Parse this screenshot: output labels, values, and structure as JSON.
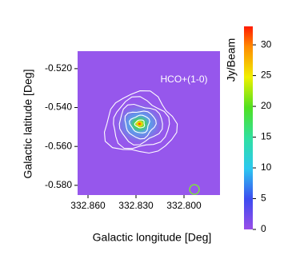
{
  "chart_data": {
    "type": "image",
    "annotation": "HCO+(1-0)",
    "x_label": "Galactic longitude [Deg]",
    "y_label": "Galactic latitude [Deg]",
    "xlim": [
      332.8665,
      332.7775
    ],
    "xticks": [
      {
        "value": 332.86,
        "label": "332.860"
      },
      {
        "value": 332.83,
        "label": "332.830"
      },
      {
        "value": 332.8,
        "label": "332.800"
      }
    ],
    "ylim": [
      -0.585,
      -0.511
    ],
    "yticks": [
      {
        "value": -0.52,
        "label": "-0.520"
      },
      {
        "value": -0.54,
        "label": "-0.540"
      },
      {
        "value": -0.56,
        "label": "-0.560"
      },
      {
        "value": -0.58,
        "label": "-0.580"
      }
    ],
    "colorbar": {
      "label": "Jy/Beam",
      "lim": [
        0,
        33
      ],
      "ticks": [
        0,
        5,
        10,
        15,
        20,
        25,
        30
      ]
    }
  }
}
